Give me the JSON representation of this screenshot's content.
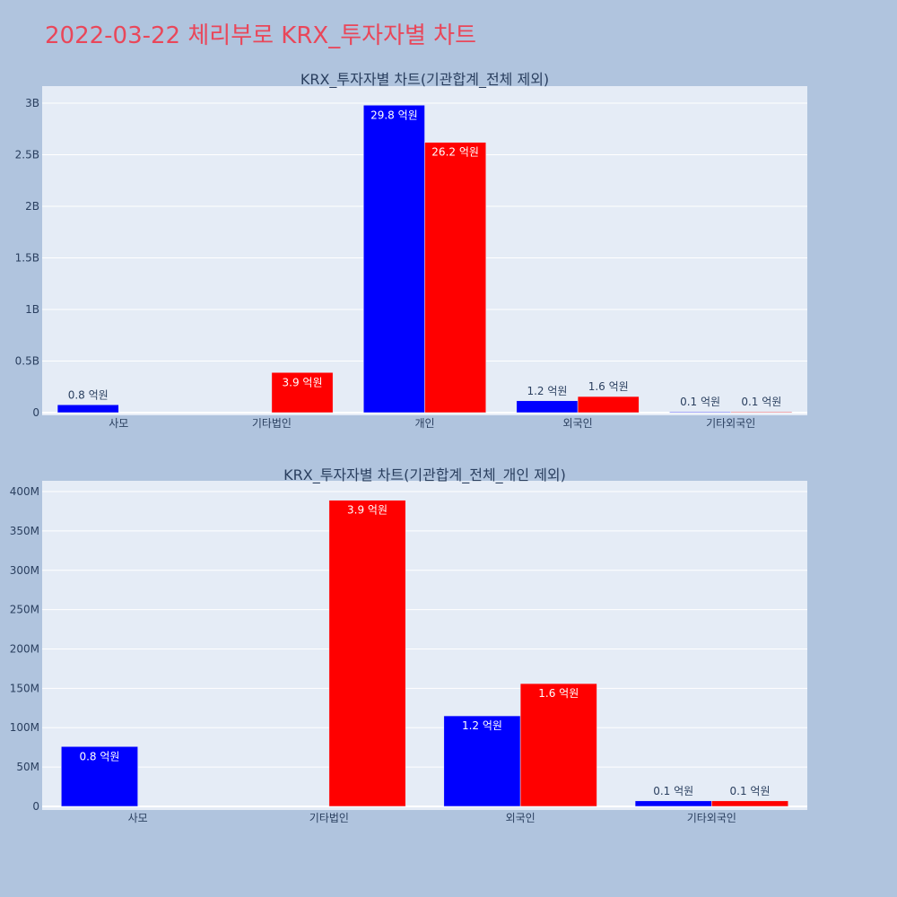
{
  "page": {
    "title": "2022-03-22 체리부로 KRX_투자자별 차트"
  },
  "colors": {
    "background": "#b0c4de",
    "title": "#e9475a",
    "plot_background": "#e5ecf6",
    "grid": "#ffffff",
    "axis_text": "#2a3f5f",
    "inside_label": "#ffffff"
  },
  "chart_data": [
    {
      "type": "bar",
      "title": "KRX_투자자별 차트(기관합계_전체 제외)",
      "categories": [
        "사모",
        "기타법인",
        "개인",
        "외국인",
        "기타외국인"
      ],
      "series": [
        {
          "color": "#0000ff",
          "values": [
            76000000,
            null,
            2980000000,
            115000000,
            7000000
          ],
          "labels": [
            "0.8 억원",
            null,
            "29.8 억원",
            "1.2 억원",
            "0.1 억원"
          ]
        },
        {
          "color": "#ff0000",
          "values": [
            null,
            389000000,
            2620000000,
            156000000,
            7000000
          ],
          "labels": [
            null,
            "3.9 억원",
            "26.2 억원",
            "1.6 억원",
            "0.1 억원"
          ]
        }
      ],
      "yticks": [
        0,
        500000000,
        1000000000,
        1500000000,
        2000000000,
        2500000000,
        3000000000
      ],
      "yticklabels": [
        "0",
        "0.5B",
        "1B",
        "1.5B",
        "2B",
        "2.5B",
        "3B"
      ],
      "ylim": [
        -26000000,
        3165000000
      ],
      "grid": true
    },
    {
      "type": "bar",
      "title": "KRX_투자자별 차트(기관합계_전체_개인 제외)",
      "categories": [
        "사모",
        "기타법인",
        "외국인",
        "기타외국인"
      ],
      "series": [
        {
          "color": "#0000ff",
          "values": [
            76000000,
            null,
            115000000,
            7000000
          ],
          "labels": [
            "0.8 억원",
            null,
            "1.2 억원",
            "0.1 억원"
          ]
        },
        {
          "color": "#ff0000",
          "values": [
            null,
            389000000,
            156000000,
            7000000
          ],
          "labels": [
            null,
            "3.9 억원",
            "1.6 억원",
            "0.1 억원"
          ]
        }
      ],
      "yticks": [
        0,
        50000000,
        100000000,
        150000000,
        200000000,
        250000000,
        300000000,
        350000000,
        400000000
      ],
      "yticklabels": [
        "0",
        "50M",
        "100M",
        "150M",
        "200M",
        "250M",
        "300M",
        "350M",
        "400M"
      ],
      "ylim": [
        -4600000,
        413700000
      ],
      "grid": true
    }
  ]
}
